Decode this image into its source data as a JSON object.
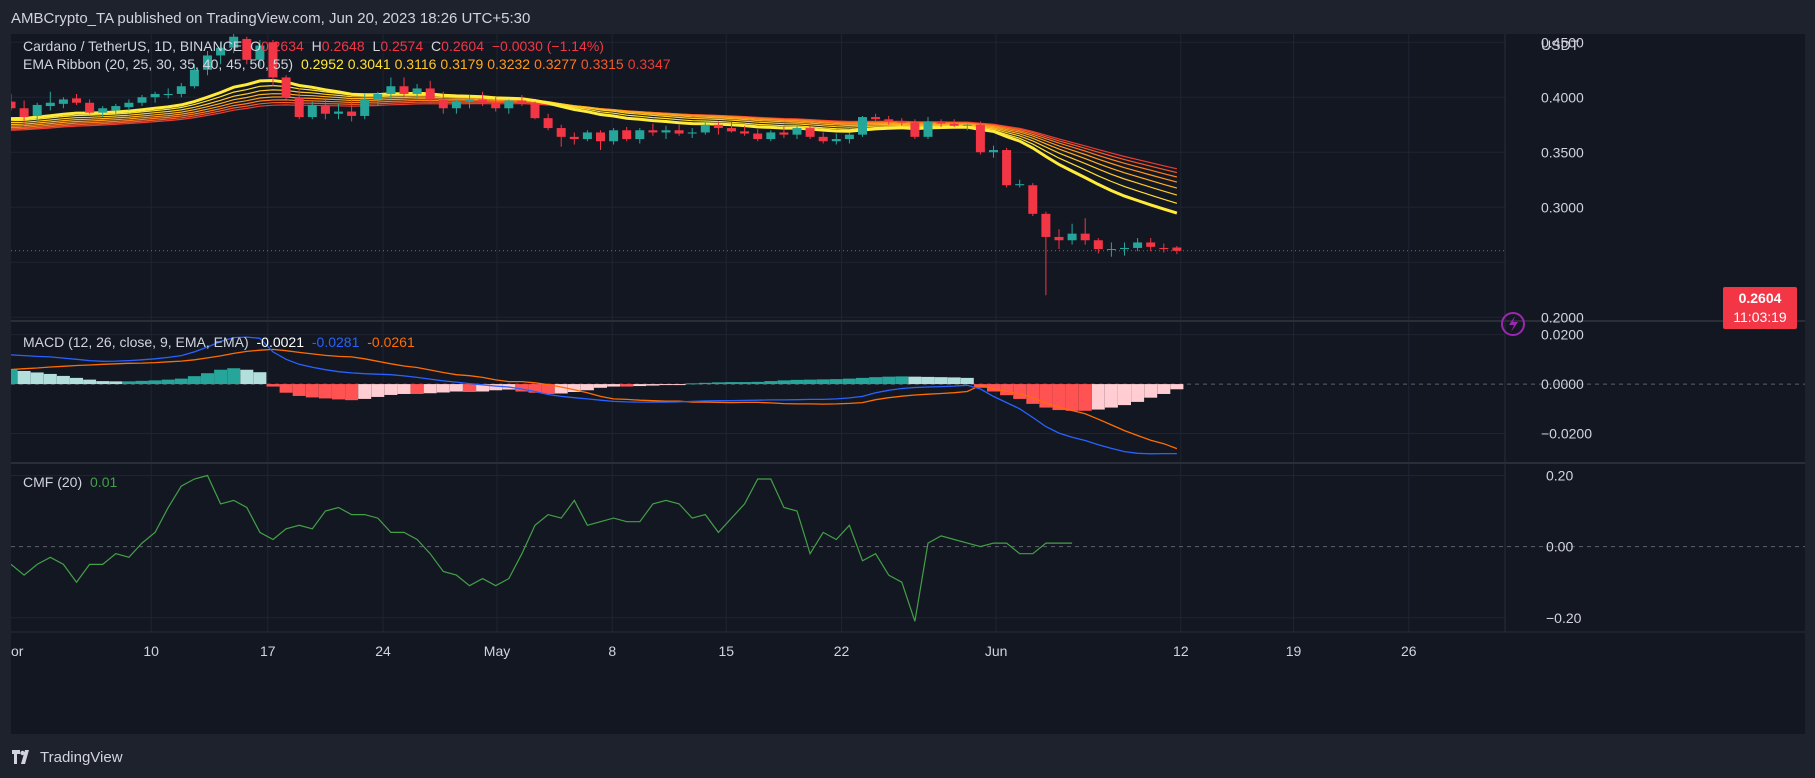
{
  "header": {
    "publisher": "AMBCrypto_TA published on TradingView.com, Jun 20, 2023 18:26 UTC+5:30"
  },
  "footer": {
    "brand": "TradingView"
  },
  "price_legend": {
    "symbol": "Cardano / TetherUS, 1D, BINANCE",
    "o_label": "O",
    "o": "0.2634",
    "h_label": "H",
    "h": "0.2648",
    "l_label": "L",
    "l": "0.2574",
    "c_label": "C",
    "c": "0.2604",
    "change": "−0.0030 (−1.14%)"
  },
  "ema_legend": {
    "label": "EMA Ribbon (20, 25, 30, 35, 40, 45, 50, 55)",
    "values": [
      "0.2952",
      "0.3041",
      "0.3116",
      "0.3179",
      "0.3232",
      "0.3277",
      "0.3315",
      "0.3347"
    ],
    "colors": [
      "#ffeb3b",
      "#ffe030",
      "#ffc928",
      "#ffb020",
      "#ff9a1c",
      "#ff7d1e",
      "#f55a28",
      "#ee3a32"
    ]
  },
  "macd_legend": {
    "label": "MACD (12, 26, close, 9, EMA, EMA)",
    "hist": "-0.0021",
    "macd": "-0.0281",
    "signal": "-0.0261"
  },
  "cmf_legend": {
    "label": "CMF (20)",
    "value": "0.01"
  },
  "price_tag": {
    "price": "0.2604",
    "countdown": "11:03:19"
  },
  "colors": {
    "up": "#26a69a",
    "down": "#f23645",
    "macd": "#2962ff",
    "signal": "#ff6d00",
    "cmf": "#43a047",
    "hist_pos_strong": "#26a69a",
    "hist_pos_weak": "#b2dfdb",
    "hist_neg_strong": "#ff5252",
    "hist_neg_weak": "#ffcdd2",
    "lightning": "#9c27b0"
  },
  "chart_data": [
    {
      "type": "candlestick",
      "currency": "USDT",
      "ylim": [
        0.1975,
        0.4575
      ],
      "y_ticks": [
        "0.4500",
        "0.4000",
        "0.3500",
        "0.3000",
        "0.2000"
      ],
      "x_ticks": [
        "or",
        "10",
        "17",
        "24",
        "May",
        "8",
        "15",
        "22",
        "Jun",
        "12",
        "19",
        "26"
      ],
      "candles": [
        [
          0.396,
          0.403,
          0.388,
          0.39
        ],
        [
          0.39,
          0.397,
          0.375,
          0.382
        ],
        [
          0.383,
          0.395,
          0.378,
          0.393
        ],
        [
          0.392,
          0.405,
          0.388,
          0.395
        ],
        [
          0.394,
          0.4,
          0.39,
          0.398
        ],
        [
          0.399,
          0.403,
          0.393,
          0.395
        ],
        [
          0.395,
          0.398,
          0.385,
          0.386
        ],
        [
          0.386,
          0.392,
          0.382,
          0.39
        ],
        [
          0.388,
          0.394,
          0.385,
          0.392
        ],
        [
          0.391,
          0.398,
          0.388,
          0.395
        ],
        [
          0.395,
          0.402,
          0.392,
          0.4
        ],
        [
          0.4,
          0.405,
          0.395,
          0.403
        ],
        [
          0.402,
          0.408,
          0.399,
          0.403
        ],
        [
          0.403,
          0.413,
          0.4,
          0.41
        ],
        [
          0.41,
          0.43,
          0.408,
          0.425
        ],
        [
          0.425,
          0.442,
          0.42,
          0.438
        ],
        [
          0.438,
          0.45,
          0.43,
          0.445
        ],
        [
          0.445,
          0.46,
          0.44,
          0.455
        ],
        [
          0.453,
          0.455,
          0.43,
          0.434
        ],
        [
          0.434,
          0.452,
          0.428,
          0.447
        ],
        [
          0.45,
          0.452,
          0.41,
          0.418
        ],
        [
          0.418,
          0.42,
          0.398,
          0.4
        ],
        [
          0.4,
          0.408,
          0.38,
          0.382
        ],
        [
          0.382,
          0.396,
          0.38,
          0.393
        ],
        [
          0.392,
          0.398,
          0.38,
          0.385
        ],
        [
          0.385,
          0.394,
          0.38,
          0.387
        ],
        [
          0.387,
          0.398,
          0.378,
          0.383
        ],
        [
          0.383,
          0.403,
          0.38,
          0.398
        ],
        [
          0.398,
          0.405,
          0.392,
          0.403
        ],
        [
          0.403,
          0.418,
          0.398,
          0.41
        ],
        [
          0.41,
          0.418,
          0.4,
          0.403
        ],
        [
          0.403,
          0.412,
          0.398,
          0.408
        ],
        [
          0.408,
          0.415,
          0.395,
          0.398
        ],
        [
          0.398,
          0.405,
          0.385,
          0.39
        ],
        [
          0.39,
          0.398,
          0.385,
          0.396
        ],
        [
          0.396,
          0.402,
          0.39,
          0.398
        ],
        [
          0.398,
          0.405,
          0.392,
          0.395
        ],
        [
          0.395,
          0.4,
          0.387,
          0.39
        ],
        [
          0.39,
          0.398,
          0.385,
          0.397
        ],
        [
          0.397,
          0.402,
          0.392,
          0.394
        ],
        [
          0.394,
          0.396,
          0.38,
          0.381
        ],
        [
          0.381,
          0.385,
          0.37,
          0.372
        ],
        [
          0.372,
          0.375,
          0.355,
          0.364
        ],
        [
          0.364,
          0.368,
          0.357,
          0.362
        ],
        [
          0.362,
          0.37,
          0.36,
          0.368
        ],
        [
          0.368,
          0.37,
          0.352,
          0.36
        ],
        [
          0.36,
          0.372,
          0.357,
          0.37
        ],
        [
          0.37,
          0.373,
          0.36,
          0.362
        ],
        [
          0.362,
          0.372,
          0.358,
          0.37
        ],
        [
          0.37,
          0.376,
          0.365,
          0.368
        ],
        [
          0.368,
          0.374,
          0.362,
          0.37
        ],
        [
          0.37,
          0.375,
          0.365,
          0.367
        ],
        [
          0.367,
          0.372,
          0.363,
          0.368
        ],
        [
          0.368,
          0.378,
          0.366,
          0.375
        ],
        [
          0.375,
          0.378,
          0.366,
          0.372
        ],
        [
          0.372,
          0.378,
          0.368,
          0.369
        ],
        [
          0.369,
          0.374,
          0.365,
          0.367
        ],
        [
          0.367,
          0.371,
          0.36,
          0.362
        ],
        [
          0.362,
          0.37,
          0.36,
          0.368
        ],
        [
          0.368,
          0.373,
          0.363,
          0.366
        ],
        [
          0.366,
          0.374,
          0.362,
          0.372
        ],
        [
          0.372,
          0.375,
          0.362,
          0.364
        ],
        [
          0.364,
          0.368,
          0.358,
          0.36
        ],
        [
          0.36,
          0.367,
          0.357,
          0.362
        ],
        [
          0.362,
          0.368,
          0.358,
          0.366
        ],
        [
          0.366,
          0.383,
          0.364,
          0.382
        ],
        [
          0.382,
          0.385,
          0.378,
          0.38
        ],
        [
          0.38,
          0.383,
          0.375,
          0.378
        ],
        [
          0.378,
          0.381,
          0.374,
          0.377
        ],
        [
          0.377,
          0.38,
          0.362,
          0.364
        ],
        [
          0.364,
          0.382,
          0.362,
          0.378
        ],
        [
          0.378,
          0.38,
          0.373,
          0.376
        ],
        [
          0.376,
          0.38,
          0.373,
          0.374
        ],
        [
          0.374,
          0.376,
          0.37,
          0.375
        ],
        [
          0.375,
          0.378,
          0.348,
          0.35
        ],
        [
          0.35,
          0.356,
          0.345,
          0.352
        ],
        [
          0.352,
          0.354,
          0.318,
          0.32
        ],
        [
          0.32,
          0.325,
          0.318,
          0.321
        ],
        [
          0.32,
          0.322,
          0.292,
          0.294
        ],
        [
          0.294,
          0.296,
          0.22,
          0.273
        ],
        [
          0.273,
          0.28,
          0.262,
          0.27
        ],
        [
          0.27,
          0.285,
          0.266,
          0.276
        ],
        [
          0.276,
          0.29,
          0.266,
          0.27
        ],
        [
          0.27,
          0.272,
          0.258,
          0.262
        ],
        [
          0.262,
          0.268,
          0.255,
          0.262
        ],
        [
          0.262,
          0.268,
          0.256,
          0.263
        ],
        [
          0.263,
          0.272,
          0.26,
          0.268
        ],
        [
          0.268,
          0.272,
          0.26,
          0.264
        ],
        [
          0.263,
          0.267,
          0.259,
          0.262
        ],
        [
          0.2634,
          0.2648,
          0.2574,
          0.2604
        ]
      ]
    },
    {
      "type": "bar+line",
      "title": "MACD (12, 26, close, 9, EMA, EMA)",
      "ylim": [
        -0.0315,
        0.0255
      ],
      "y_ticks": [
        "0.0200",
        "0.0000",
        "−0.0200"
      ],
      "histogram": [
        0.0059,
        0.0053,
        0.0047,
        0.0041,
        0.0033,
        0.0025,
        0.0018,
        0.0012,
        0.0011,
        0.0011,
        0.0013,
        0.0015,
        0.0018,
        0.0022,
        0.0032,
        0.0044,
        0.0058,
        0.0064,
        0.0058,
        0.0048,
        -0.001,
        -0.0035,
        -0.0048,
        -0.0054,
        -0.0058,
        -0.0062,
        -0.0065,
        -0.006,
        -0.0052,
        -0.0044,
        -0.004,
        -0.004,
        -0.0037,
        -0.0034,
        -0.003,
        -0.0032,
        -0.003,
        -0.0025,
        -0.0022,
        -0.003,
        -0.0035,
        -0.004,
        -0.0038,
        -0.0032,
        -0.0025,
        -0.0015,
        -0.001,
        -0.001,
        -0.0008,
        -0.0006,
        -0.0004,
        -0.0003,
        0.0003,
        0.0005,
        0.0007,
        0.0008,
        0.0008,
        0.0009,
        0.0012,
        0.0015,
        0.0017,
        0.0018,
        0.0019,
        0.002,
        0.0022,
        0.0025,
        0.0028,
        0.003,
        0.0031,
        0.003,
        0.0029,
        0.0028,
        0.0027,
        0.0025,
        -0.0015,
        -0.003,
        -0.0045,
        -0.006,
        -0.008,
        -0.0095,
        -0.0105,
        -0.0108,
        -0.0108,
        -0.0103,
        -0.0095,
        -0.0085,
        -0.0072,
        -0.0055,
        -0.004,
        -0.0021
      ],
      "macd": [
        0.0118,
        0.0115,
        0.0112,
        0.011,
        0.0105,
        0.01,
        0.0095,
        0.0092,
        0.0093,
        0.0095,
        0.0098,
        0.0102,
        0.0108,
        0.0115,
        0.013,
        0.015,
        0.0172,
        0.0188,
        0.019,
        0.0185,
        0.013,
        0.01,
        0.008,
        0.0068,
        0.0058,
        0.005,
        0.0045,
        0.0042,
        0.004,
        0.0038,
        0.0033,
        0.0027,
        0.002,
        0.0013,
        0.0008,
        0.0002,
        -0.0003,
        -0.0008,
        -0.0012,
        -0.002,
        -0.003,
        -0.0042,
        -0.005,
        -0.0055,
        -0.006,
        -0.0065,
        -0.007,
        -0.0072,
        -0.0073,
        -0.0073,
        -0.0073,
        -0.0072,
        -0.007,
        -0.0068,
        -0.0067,
        -0.0067,
        -0.0066,
        -0.0065,
        -0.0064,
        -0.0064,
        -0.0063,
        -0.0062,
        -0.0062,
        -0.006,
        -0.0056,
        -0.005,
        -0.0035,
        -0.0025,
        -0.0018,
        -0.0014,
        -0.0012,
        -0.001,
        -0.0008,
        -0.0005,
        -0.002,
        -0.005,
        -0.0075,
        -0.01,
        -0.0135,
        -0.0172,
        -0.0198,
        -0.0215,
        -0.0228,
        -0.0245,
        -0.026,
        -0.0273,
        -0.028,
        -0.0282,
        -0.0281,
        -0.0281
      ],
      "signal": [
        0.0059,
        0.0062,
        0.0065,
        0.0069,
        0.0072,
        0.0075,
        0.0077,
        0.008,
        0.0082,
        0.0084,
        0.0085,
        0.0087,
        0.009,
        0.0093,
        0.0098,
        0.0106,
        0.0114,
        0.0124,
        0.0132,
        0.0137,
        0.014,
        0.0135,
        0.0128,
        0.0122,
        0.0116,
        0.0112,
        0.011,
        0.0102,
        0.0092,
        0.0082,
        0.0073,
        0.0067,
        0.0057,
        0.0047,
        0.0038,
        0.0034,
        0.0027,
        0.0017,
        0.001,
        0.001,
        0.0005,
        -0.0002,
        -0.0012,
        -0.0023,
        -0.0035,
        -0.005,
        -0.006,
        -0.0062,
        -0.0065,
        -0.0067,
        -0.0069,
        -0.0069,
        -0.0073,
        -0.0073,
        -0.0074,
        -0.0075,
        -0.0074,
        -0.0074,
        -0.0076,
        -0.0079,
        -0.008,
        -0.008,
        -0.0081,
        -0.008,
        -0.0078,
        -0.0075,
        -0.0063,
        -0.0055,
        -0.0049,
        -0.0044,
        -0.0041,
        -0.0038,
        -0.0035,
        -0.003,
        -0.0005,
        -0.002,
        -0.003,
        -0.004,
        -0.0055,
        -0.0077,
        -0.0093,
        -0.0107,
        -0.012,
        -0.0142,
        -0.0165,
        -0.0188,
        -0.0208,
        -0.0227,
        -0.0241,
        -0.0261
      ]
    },
    {
      "type": "line",
      "title": "CMF (20)",
      "ylim": [
        -0.24,
        0.235
      ],
      "y_ticks": [
        "0.20",
        "0.00",
        "−0.20"
      ],
      "values": [
        -0.05,
        -0.08,
        -0.05,
        -0.03,
        -0.05,
        -0.1,
        -0.05,
        -0.05,
        -0.02,
        -0.03,
        0.01,
        0.04,
        0.11,
        0.17,
        0.19,
        0.2,
        0.12,
        0.13,
        0.11,
        0.04,
        0.02,
        0.05,
        0.06,
        0.05,
        0.1,
        0.11,
        0.09,
        0.09,
        0.08,
        0.04,
        0.04,
        0.02,
        -0.02,
        -0.07,
        -0.08,
        -0.11,
        -0.09,
        -0.11,
        -0.09,
        -0.02,
        0.06,
        0.09,
        0.08,
        0.13,
        0.06,
        0.07,
        0.08,
        0.07,
        0.07,
        0.12,
        0.13,
        0.12,
        0.08,
        0.09,
        0.04,
        0.08,
        0.12,
        0.19,
        0.19,
        0.11,
        0.1,
        -0.02,
        0.04,
        0.02,
        0.06,
        -0.04,
        -0.02,
        -0.08,
        -0.1,
        -0.21,
        0.01,
        0.03,
        0.02,
        0.01,
        0.0,
        0.01,
        0.01,
        -0.02,
        -0.02,
        0.01,
        0.01,
        0.01
      ]
    }
  ]
}
